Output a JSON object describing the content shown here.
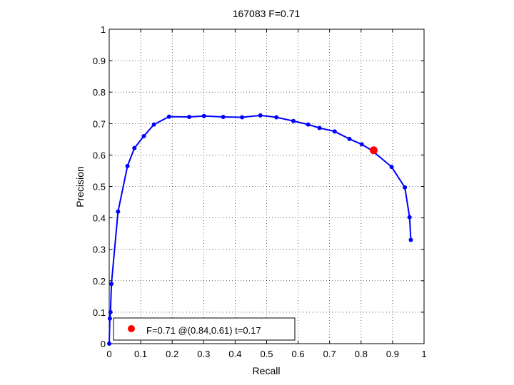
{
  "chart_data": {
    "type": "line",
    "title": "167083 F=0.71",
    "xlabel": "Recall",
    "ylabel": "Precision",
    "xlim": [
      0,
      1
    ],
    "ylim": [
      0,
      1
    ],
    "xticks": [
      "0",
      "0.1",
      "0.2",
      "0.3",
      "0.4",
      "0.5",
      "0.6",
      "0.7",
      "0.8",
      "0.9",
      "1"
    ],
    "yticks": [
      "0",
      "0.1",
      "0.2",
      "0.3",
      "0.4",
      "0.5",
      "0.6",
      "0.7",
      "0.8",
      "0.9",
      "1"
    ],
    "grid": true,
    "legend_position": "bottom-left",
    "series": [
      {
        "color": "#0000ff",
        "marker": "dot",
        "x": [
          0.0,
          0.002,
          0.004,
          0.007,
          0.028,
          0.058,
          0.08,
          0.11,
          0.142,
          0.19,
          0.254,
          0.301,
          0.362,
          0.422,
          0.48,
          0.531,
          0.585,
          0.632,
          0.668,
          0.716,
          0.763,
          0.802,
          0.835,
          0.897,
          0.939,
          0.954,
          0.958
        ],
        "y": [
          0.0,
          0.08,
          0.1,
          0.19,
          0.42,
          0.565,
          0.622,
          0.66,
          0.697,
          0.722,
          0.721,
          0.724,
          0.721,
          0.72,
          0.726,
          0.72,
          0.708,
          0.697,
          0.686,
          0.675,
          0.651,
          0.634,
          0.614,
          0.562,
          0.497,
          0.402,
          0.33
        ]
      },
      {
        "name": "F=0.71 @(0.84,0.61) t=0.17",
        "color": "#ff0000",
        "marker": "large-dot",
        "x": [
          0.84
        ],
        "y": [
          0.615
        ]
      }
    ]
  }
}
